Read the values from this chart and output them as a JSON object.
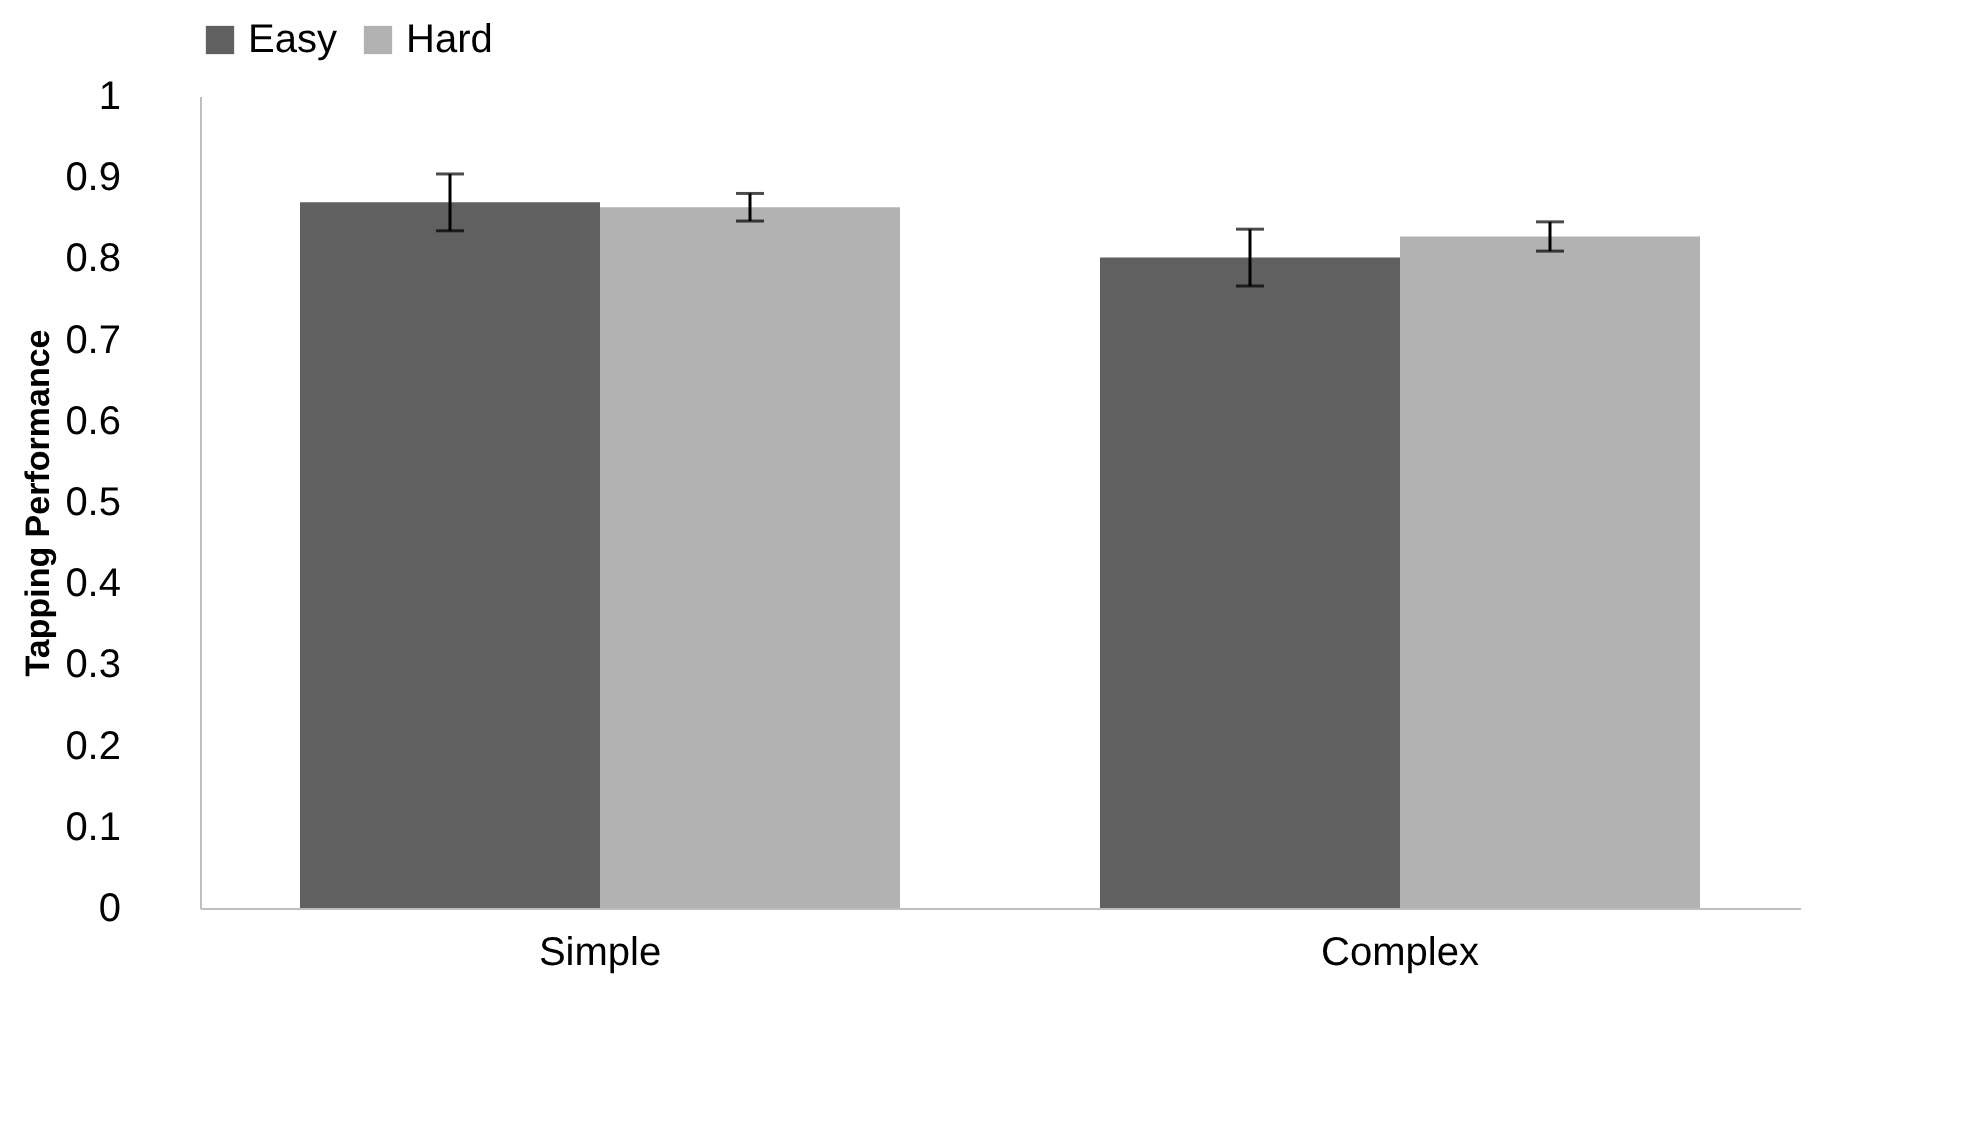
{
  "chart_data": {
    "type": "bar",
    "ylabel": "Tapping Performance",
    "categories": [
      "Simple",
      "Complex"
    ],
    "series": [
      {
        "name": "Easy",
        "color": "#606060",
        "values": [
          0.869,
          0.801
        ],
        "errors": [
          0.035,
          0.035
        ]
      },
      {
        "name": "Hard",
        "color": "#b2b2b2",
        "values": [
          0.863,
          0.827
        ],
        "errors": [
          0.017,
          0.018
        ]
      }
    ],
    "ylim": [
      0,
      1
    ],
    "yticks": [
      0,
      0.1,
      0.2,
      0.3,
      0.4,
      0.5,
      0.6,
      0.7,
      0.8,
      0.9,
      1
    ],
    "grid": false,
    "legend": "top"
  }
}
